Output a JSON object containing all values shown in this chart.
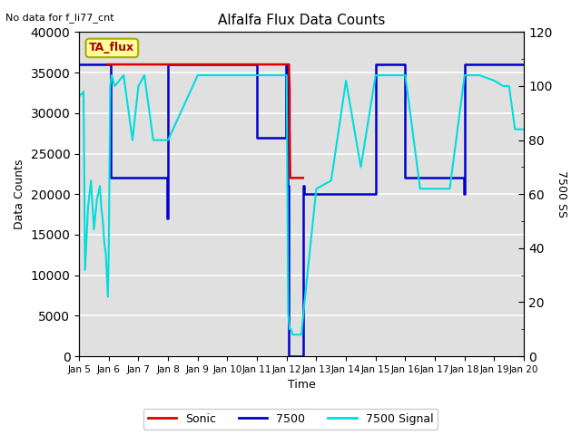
{
  "title": "Alfalfa Flux Data Counts",
  "xlabel": "Time",
  "ylabel_left": "Data Counts",
  "ylabel_right": "7500 SS",
  "top_left_text": "No data for f_li77_cnt",
  "legend_label": "TA_flux",
  "background_color": "#e0e0e0",
  "fig_bg": "#ffffff",
  "xlim": [
    5,
    20
  ],
  "ylim_left": [
    0,
    40000
  ],
  "ylim_right": [
    0,
    120
  ],
  "xtick_labels": [
    "Jan 5",
    "Jan 6",
    "Jan 7",
    "Jan 8",
    "Jan 9",
    "Jan 10",
    "Jan 11",
    "Jan 12",
    "Jan 13",
    "Jan 14",
    "Jan 15",
    "Jan 16",
    "Jan 17",
    "Jan 18",
    "Jan 19",
    "Jan 20"
  ],
  "xtick_positions": [
    5,
    6,
    7,
    8,
    9,
    10,
    11,
    12,
    13,
    14,
    15,
    16,
    17,
    18,
    19,
    20
  ],
  "yticks_left": [
    0,
    5000,
    10000,
    15000,
    20000,
    25000,
    30000,
    35000,
    40000
  ],
  "yticks_right": [
    0,
    20,
    40,
    60,
    80,
    100,
    120
  ],
  "sonic_color": "#dd0000",
  "blue_color": "#0000cc",
  "cyan_color": "#00dddd",
  "sonic_x": [
    5.97,
    5.97,
    6.0,
    6.0,
    6.0,
    6.02,
    6.02,
    6.02,
    6.04,
    6.04,
    12.02,
    12.02,
    12.08,
    12.08,
    12.1,
    12.1,
    12.12,
    12.12,
    12.12,
    12.55,
    12.55
  ],
  "sonic_y": [
    36000,
    36000,
    36000,
    36000,
    36000,
    36000,
    36000,
    36000,
    36000,
    36000,
    36000,
    36000,
    36000,
    35000,
    33000,
    28000,
    22000,
    22000,
    22000,
    22000,
    22000
  ],
  "blue_x": [
    5.0,
    5.0,
    5.97,
    5.97,
    6.0,
    6.0,
    6.07,
    6.07,
    7.97,
    7.97,
    8.0,
    8.0,
    10.97,
    10.97,
    11.0,
    11.0,
    11.97,
    11.97,
    12.0,
    12.0,
    12.05,
    12.05,
    12.08,
    12.08,
    12.55,
    12.55,
    12.6,
    12.6,
    14.97,
    14.97,
    15.0,
    15.0,
    15.97,
    15.97,
    16.0,
    16.0,
    17.97,
    17.97,
    18.0,
    18.0,
    19.97,
    19.97,
    20.0
  ],
  "blue_y": [
    36000,
    36000,
    36000,
    36000,
    36000,
    36000,
    36000,
    22000,
    22000,
    17000,
    17000,
    36000,
    36000,
    36000,
    36000,
    27000,
    27000,
    36000,
    36000,
    36000,
    36000,
    21000,
    21000,
    0,
    0,
    21000,
    21000,
    20000,
    20000,
    20000,
    20000,
    36000,
    36000,
    36000,
    36000,
    22000,
    22000,
    20000,
    20000,
    36000,
    36000,
    36000,
    36000
  ],
  "cyan_x": [
    5.0,
    5.05,
    5.1,
    5.15,
    5.2,
    5.3,
    5.4,
    5.5,
    5.6,
    5.7,
    5.75,
    5.8,
    5.85,
    5.9,
    5.97,
    6.0,
    6.05,
    6.1,
    6.2,
    6.5,
    6.8,
    7.0,
    7.2,
    7.5,
    7.8,
    8.0,
    9.0,
    10.0,
    11.0,
    11.5,
    12.0,
    12.05,
    12.1,
    12.15,
    12.2,
    12.25,
    12.3,
    12.4,
    12.5,
    12.6,
    13.0,
    13.5,
    14.0,
    14.5,
    15.0,
    15.5,
    16.0,
    16.5,
    17.0,
    17.5,
    18.0,
    18.5,
    19.0,
    19.3,
    19.5,
    19.7,
    20.0
  ],
  "cyan_y": [
    96,
    97,
    97,
    98,
    32,
    55,
    65,
    47,
    58,
    63,
    55,
    50,
    42,
    38,
    22,
    40,
    100,
    104,
    100,
    104,
    80,
    100,
    104,
    80,
    80,
    80,
    104,
    104,
    104,
    104,
    104,
    16,
    10,
    10,
    8,
    8,
    8,
    8,
    8,
    20,
    62,
    65,
    102,
    70,
    104,
    104,
    104,
    62,
    62,
    62,
    104,
    104,
    102,
    100,
    100,
    84,
    84
  ]
}
